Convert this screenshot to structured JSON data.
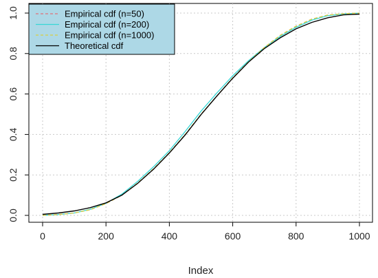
{
  "chart_data": {
    "type": "line",
    "title": "",
    "xlabel": "Index",
    "ylabel": "",
    "xlim": [
      0,
      1000
    ],
    "ylim": [
      0,
      1
    ],
    "xticks": [
      0,
      200,
      400,
      600,
      800,
      1000
    ],
    "yticks": [
      0.0,
      0.2,
      0.4,
      0.6,
      0.8,
      1.0
    ],
    "xtick_labels": [
      "0",
      "200",
      "400",
      "600",
      "800",
      "1000"
    ],
    "ytick_labels": [
      "0.0",
      "0.2",
      "0.4",
      "0.6",
      "0.8",
      "1.0"
    ],
    "grid": true,
    "legend": {
      "position": "top-left",
      "background": "#add8e6",
      "entries": [
        {
          "label": "Empirical cdf (n=50)",
          "color": "#e0707a",
          "style": "dashed"
        },
        {
          "label": "Empirical cdf (n=200)",
          "color": "#35d6d6",
          "style": "solid"
        },
        {
          "label": "Empirical cdf (n=1000)",
          "color": "#d8cf42",
          "style": "dashed"
        },
        {
          "label": "Theoretical cdf",
          "color": "#000000",
          "style": "solid"
        }
      ]
    },
    "series": [
      {
        "name": "Empirical cdf (n=50)",
        "color": "#e0707a",
        "style": "dashed",
        "x": [
          0,
          50,
          100,
          150,
          200,
          250,
          300,
          350,
          400,
          450,
          500,
          550,
          600,
          650,
          700,
          750,
          800,
          850,
          900,
          950,
          1000
        ],
        "y": [
          0.0,
          0.004,
          0.012,
          0.028,
          0.058,
          0.1,
          0.16,
          0.23,
          0.31,
          0.4,
          0.5,
          0.59,
          0.68,
          0.76,
          0.83,
          0.89,
          0.935,
          0.97,
          0.99,
          0.997,
          1.0
        ]
      },
      {
        "name": "Empirical cdf (n=200)",
        "color": "#35d6d6",
        "style": "solid",
        "x": [
          0,
          50,
          100,
          150,
          200,
          250,
          300,
          350,
          400,
          450,
          500,
          550,
          600,
          650,
          700,
          750,
          800,
          850,
          900,
          950,
          1000
        ],
        "y": [
          0.0,
          0.004,
          0.012,
          0.03,
          0.06,
          0.105,
          0.168,
          0.24,
          0.32,
          0.415,
          0.515,
          0.605,
          0.69,
          0.765,
          0.83,
          0.885,
          0.93,
          0.965,
          0.987,
          0.996,
          1.0
        ]
      },
      {
        "name": "Empirical cdf (n=1000)",
        "color": "#d8cf42",
        "style": "dashed",
        "x": [
          0,
          50,
          100,
          150,
          200,
          250,
          300,
          350,
          400,
          450,
          500,
          550,
          600,
          650,
          700,
          750,
          800,
          850,
          900,
          950,
          1000
        ],
        "y": [
          0.0,
          0.004,
          0.012,
          0.028,
          0.058,
          0.1,
          0.16,
          0.23,
          0.31,
          0.4,
          0.5,
          0.59,
          0.68,
          0.76,
          0.83,
          0.89,
          0.935,
          0.97,
          0.99,
          0.997,
          1.0
        ]
      },
      {
        "name": "Theoretical cdf",
        "color": "#000000",
        "style": "solid",
        "x": [
          0,
          50,
          100,
          150,
          200,
          250,
          300,
          350,
          400,
          450,
          500,
          550,
          600,
          650,
          700,
          750,
          800,
          850,
          900,
          950,
          1000
        ],
        "y": [
          0.005,
          0.012,
          0.022,
          0.038,
          0.062,
          0.1,
          0.158,
          0.228,
          0.308,
          0.398,
          0.498,
          0.59,
          0.678,
          0.758,
          0.825,
          0.878,
          0.922,
          0.954,
          0.977,
          0.991,
          0.995
        ]
      }
    ]
  }
}
